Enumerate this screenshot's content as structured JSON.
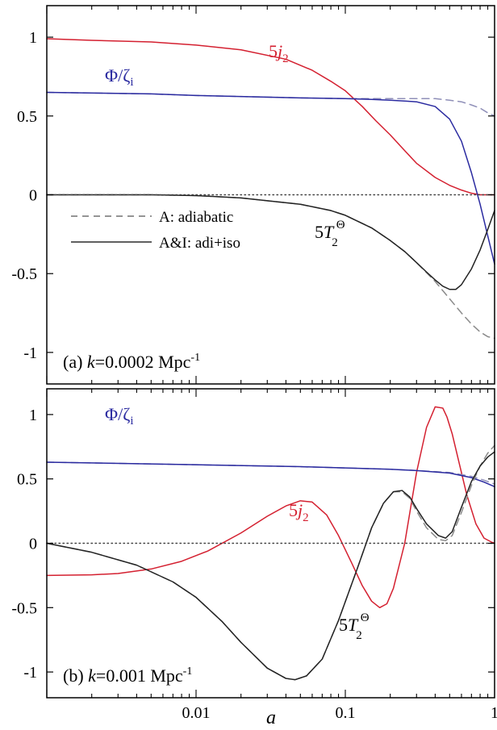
{
  "chart_data": [
    {
      "type": "line",
      "panel_label": "(a) ",
      "panel_k": "k",
      "panel_value": "=0.0002 Mpc",
      "panel_exp": "-1",
      "xlim": [
        0.001,
        1
      ],
      "xscale": "log",
      "ylim": [
        -1.2,
        1.2
      ],
      "yticks": [
        "-1",
        "-0.5",
        "0",
        "0.5",
        "1"
      ],
      "ytick_values": [
        -1,
        -0.5,
        0,
        0.5,
        1
      ],
      "legend": {
        "placement": "center-left",
        "entries": [
          {
            "style": "dashed",
            "label": "A: adiabatic"
          },
          {
            "style": "solid",
            "label": "A&I: adi+iso"
          }
        ]
      },
      "zero_line": true,
      "series": [
        {
          "name": "5j2",
          "color": "#d42030",
          "style": "solid",
          "x": [
            0.001,
            0.002,
            0.005,
            0.01,
            0.02,
            0.04,
            0.06,
            0.08,
            0.1,
            0.13,
            0.16,
            0.2,
            0.25,
            0.3,
            0.4,
            0.5,
            0.6,
            0.7,
            0.8,
            0.9,
            1.0
          ],
          "y": [
            0.99,
            0.98,
            0.97,
            0.95,
            0.92,
            0.86,
            0.79,
            0.72,
            0.66,
            0.56,
            0.47,
            0.38,
            0.28,
            0.2,
            0.11,
            0.06,
            0.03,
            0.01,
            0.0,
            0.0,
            0.0
          ]
        },
        {
          "name": "Phi/zeta_i (A)",
          "color": "#8f8fb8",
          "style": "dashed",
          "x": [
            0.001,
            0.005,
            0.01,
            0.05,
            0.1,
            0.2,
            0.3,
            0.4,
            0.5,
            0.6,
            0.7,
            0.8,
            0.9,
            1.0
          ],
          "y": [
            0.65,
            0.64,
            0.63,
            0.615,
            0.61,
            0.61,
            0.61,
            0.61,
            0.6,
            0.59,
            0.57,
            0.55,
            0.52,
            0.5
          ]
        },
        {
          "name": "Phi/zeta_i (A&I)",
          "color": "#2a2aa0",
          "style": "solid",
          "x": [
            0.001,
            0.005,
            0.01,
            0.05,
            0.1,
            0.15,
            0.2,
            0.25,
            0.3,
            0.4,
            0.5,
            0.6,
            0.7,
            0.8,
            0.9,
            1.0
          ],
          "y": [
            0.65,
            0.64,
            0.63,
            0.615,
            0.61,
            0.605,
            0.6,
            0.595,
            0.59,
            0.56,
            0.48,
            0.34,
            0.14,
            -0.06,
            -0.26,
            -0.44
          ]
        },
        {
          "name": "5T2Theta (A)",
          "color": "#8a8a8a",
          "style": "dashed",
          "x": [
            0.001,
            0.005,
            0.01,
            0.02,
            0.05,
            0.08,
            0.1,
            0.15,
            0.2,
            0.25,
            0.3,
            0.4,
            0.5,
            0.6,
            0.7,
            0.8,
            0.9,
            1.0
          ],
          "y": [
            0.0,
            0.0,
            -0.005,
            -0.02,
            -0.06,
            -0.1,
            -0.13,
            -0.21,
            -0.29,
            -0.36,
            -0.43,
            -0.55,
            -0.66,
            -0.75,
            -0.82,
            -0.87,
            -0.9,
            -0.91
          ]
        },
        {
          "name": "5T2Theta (A&I)",
          "color": "#222222",
          "style": "solid",
          "x": [
            0.001,
            0.005,
            0.01,
            0.02,
            0.05,
            0.08,
            0.1,
            0.15,
            0.2,
            0.25,
            0.3,
            0.35,
            0.4,
            0.45,
            0.5,
            0.55,
            0.6,
            0.7,
            0.8,
            0.9,
            1.0
          ],
          "y": [
            0.0,
            0.0,
            -0.005,
            -0.02,
            -0.06,
            -0.1,
            -0.13,
            -0.21,
            -0.29,
            -0.36,
            -0.43,
            -0.49,
            -0.54,
            -0.58,
            -0.6,
            -0.6,
            -0.57,
            -0.47,
            -0.35,
            -0.22,
            -0.1
          ]
        },
        {
          "name": "zero",
          "color": "#444444",
          "style": "dotted",
          "x": [
            0.001,
            1.0
          ],
          "y": [
            0,
            0
          ]
        }
      ],
      "annotations": [
        {
          "id": "j2",
          "text_main": "5",
          "text_var": "j",
          "text_sub": "2",
          "color": "#d42030"
        },
        {
          "id": "phi",
          "text_main": "Φ/ζ",
          "text_sub": "i",
          "color": "#2a2aa0"
        },
        {
          "id": "T2",
          "text_main": "5",
          "text_var": "T",
          "text_sub": "2",
          "text_sup": "Θ",
          "color": "#000000"
        }
      ]
    },
    {
      "type": "line",
      "panel_label": "(b) ",
      "panel_k": "k",
      "panel_value": "=0.001 Mpc",
      "panel_exp": "-1",
      "xlim": [
        0.001,
        1
      ],
      "xscale": "log",
      "ylim": [
        -1.2,
        1.2
      ],
      "xticks": [
        "0.01",
        "0.1",
        "1"
      ],
      "xtick_values": [
        0.01,
        0.1,
        1
      ],
      "yticks": [
        "-1",
        "-0.5",
        "0",
        "0.5",
        "1"
      ],
      "ytick_values": [
        -1,
        -0.5,
        0,
        0.5,
        1
      ],
      "xlabel": "a",
      "zero_line": true,
      "series": [
        {
          "name": "5j2",
          "color": "#d42030",
          "style": "solid",
          "x": [
            0.001,
            0.002,
            0.003,
            0.005,
            0.008,
            0.012,
            0.02,
            0.03,
            0.04,
            0.05,
            0.06,
            0.075,
            0.09,
            0.11,
            0.13,
            0.15,
            0.17,
            0.19,
            0.21,
            0.25,
            0.3,
            0.35,
            0.4,
            0.45,
            0.48,
            0.52,
            0.58,
            0.65,
            0.75,
            0.85,
            0.95,
            1.0
          ],
          "y": [
            -0.25,
            -0.245,
            -0.235,
            -0.2,
            -0.14,
            -0.06,
            0.08,
            0.21,
            0.29,
            0.33,
            0.32,
            0.22,
            0.06,
            -0.15,
            -0.33,
            -0.45,
            -0.5,
            -0.47,
            -0.35,
            0.0,
            0.55,
            0.9,
            1.06,
            1.05,
            0.98,
            0.85,
            0.62,
            0.38,
            0.15,
            0.04,
            0.01,
            0.0
          ]
        },
        {
          "name": "Phi/zeta_i (A)",
          "color": "#8f8fb8",
          "style": "dashed",
          "x": [
            0.001,
            0.01,
            0.05,
            0.1,
            0.2,
            0.3,
            0.5,
            0.7,
            0.85,
            1.0
          ],
          "y": [
            0.63,
            0.61,
            0.595,
            0.585,
            0.575,
            0.565,
            0.55,
            0.52,
            0.49,
            0.46
          ]
        },
        {
          "name": "Phi/zeta_i (A&I)",
          "color": "#2a2aa0",
          "style": "solid",
          "x": [
            0.001,
            0.01,
            0.05,
            0.1,
            0.2,
            0.3,
            0.5,
            0.7,
            0.85,
            1.0
          ],
          "y": [
            0.63,
            0.61,
            0.595,
            0.585,
            0.575,
            0.565,
            0.545,
            0.51,
            0.475,
            0.44
          ]
        },
        {
          "name": "5T2Theta (A)",
          "color": "#8a8a8a",
          "style": "dashed",
          "x": [
            0.001,
            0.002,
            0.004,
            0.007,
            0.01,
            0.015,
            0.02,
            0.03,
            0.04,
            0.046,
            0.055,
            0.07,
            0.09,
            0.12,
            0.15,
            0.18,
            0.21,
            0.24,
            0.27,
            0.3,
            0.35,
            0.42,
            0.47,
            0.52,
            0.6,
            0.7,
            0.8,
            0.9,
            1.0
          ],
          "y": [
            0.0,
            -0.07,
            -0.17,
            -0.3,
            -0.42,
            -0.61,
            -0.77,
            -0.97,
            -1.05,
            -1.06,
            -1.03,
            -0.9,
            -0.6,
            -0.2,
            0.12,
            0.31,
            0.4,
            0.4,
            0.35,
            0.25,
            0.12,
            0.03,
            0.02,
            0.06,
            0.24,
            0.45,
            0.6,
            0.7,
            0.76
          ]
        },
        {
          "name": "5T2Theta (A&I)",
          "color": "#222222",
          "style": "solid",
          "x": [
            0.001,
            0.002,
            0.004,
            0.007,
            0.01,
            0.015,
            0.02,
            0.03,
            0.04,
            0.046,
            0.055,
            0.07,
            0.09,
            0.12,
            0.15,
            0.18,
            0.21,
            0.24,
            0.27,
            0.3,
            0.35,
            0.42,
            0.47,
            0.52,
            0.6,
            0.7,
            0.8,
            0.9,
            1.0
          ],
          "y": [
            0.0,
            -0.07,
            -0.17,
            -0.3,
            -0.42,
            -0.61,
            -0.77,
            -0.97,
            -1.05,
            -1.06,
            -1.03,
            -0.9,
            -0.6,
            -0.2,
            0.12,
            0.31,
            0.4,
            0.41,
            0.36,
            0.27,
            0.15,
            0.06,
            0.04,
            0.09,
            0.28,
            0.48,
            0.6,
            0.67,
            0.71
          ]
        },
        {
          "name": "zero",
          "color": "#444444",
          "style": "dotted",
          "x": [
            0.001,
            1.0
          ],
          "y": [
            0,
            0
          ]
        }
      ],
      "annotations": [
        {
          "id": "phi",
          "text_main": "Φ/ζ",
          "text_sub": "i",
          "color": "#2a2aa0"
        },
        {
          "id": "j2",
          "text_main": "5",
          "text_var": "j",
          "text_sub": "2",
          "color": "#d42030"
        },
        {
          "id": "T2",
          "text_main": "5",
          "text_var": "T",
          "text_sub": "2",
          "text_sup": "Θ",
          "color": "#000000"
        }
      ]
    }
  ]
}
